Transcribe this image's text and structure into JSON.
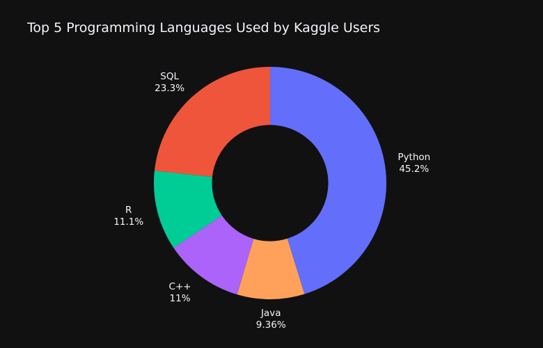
{
  "chart_data": {
    "type": "pie",
    "title": "Top 5 Programming Languages Used by Kaggle Users",
    "hole": 0.5,
    "slices": [
      {
        "name": "Python",
        "value": 45.2,
        "percent_label": "45.2%",
        "color": "#636efa"
      },
      {
        "name": "Java",
        "value": 9.36,
        "percent_label": "9.36%",
        "color": "#ffa15a"
      },
      {
        "name": "C++",
        "value": 11.0,
        "percent_label": "11%",
        "color": "#ab63fa"
      },
      {
        "name": "R",
        "value": 11.1,
        "percent_label": "11.1%",
        "color": "#00cc96"
      },
      {
        "name": "SQL",
        "value": 23.3,
        "percent_label": "23.3%",
        "color": "#ef553b"
      }
    ],
    "direction": "clockwise",
    "start": "top",
    "legend": "none"
  }
}
